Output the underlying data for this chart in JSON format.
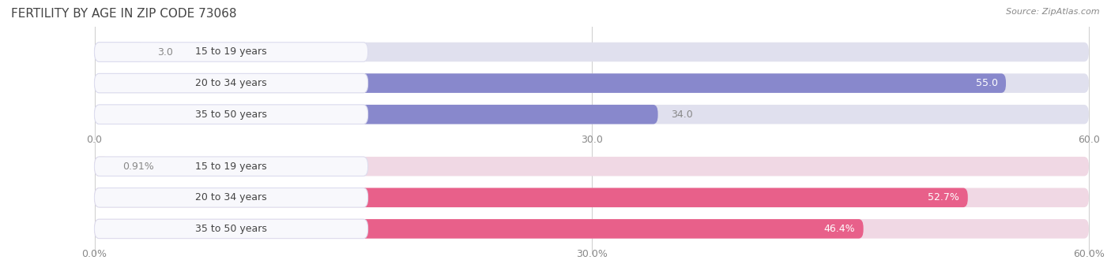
{
  "title": "FERTILITY BY AGE IN ZIP CODE 73068",
  "source_text": "Source: ZipAtlas.com",
  "top_section": {
    "categories": [
      "15 to 19 years",
      "20 to 34 years",
      "35 to 50 years"
    ],
    "values": [
      3.0,
      55.0,
      34.0
    ],
    "value_labels": [
      "3.0",
      "55.0",
      "34.0"
    ],
    "xlim": [
      0,
      60
    ],
    "xticks": [
      0.0,
      30.0,
      60.0
    ],
    "xtick_labels": [
      "0.0",
      "30.0",
      "60.0"
    ],
    "bar_color": "#8888cc",
    "bar_bg_color": "#e0e0ee",
    "label_threshold": 45
  },
  "bottom_section": {
    "categories": [
      "15 to 19 years",
      "20 to 34 years",
      "35 to 50 years"
    ],
    "values": [
      0.91,
      52.7,
      46.4
    ],
    "xlim": [
      0,
      60
    ],
    "xticks": [
      0.0,
      30.0,
      60.0
    ],
    "xtick_labels": [
      "0.0%",
      "30.0%",
      "60.0%"
    ],
    "bar_color": "#e8608a",
    "bar_bg_color": "#f0d8e4",
    "label_threshold": 45,
    "value_labels": [
      "0.91%",
      "52.7%",
      "46.4%"
    ]
  },
  "bar_height": 0.62,
  "cat_label_fontsize": 9,
  "value_label_fontsize": 9,
  "title_fontsize": 11,
  "source_fontsize": 8,
  "bg_color": "#ffffff",
  "grid_color": "#cccccc",
  "tick_label_color": "#888888",
  "title_color": "#444444",
  "cat_text_color": "#444444",
  "pill_bg_color": "#f8f8fc",
  "pill_border_color": "#ddddee"
}
